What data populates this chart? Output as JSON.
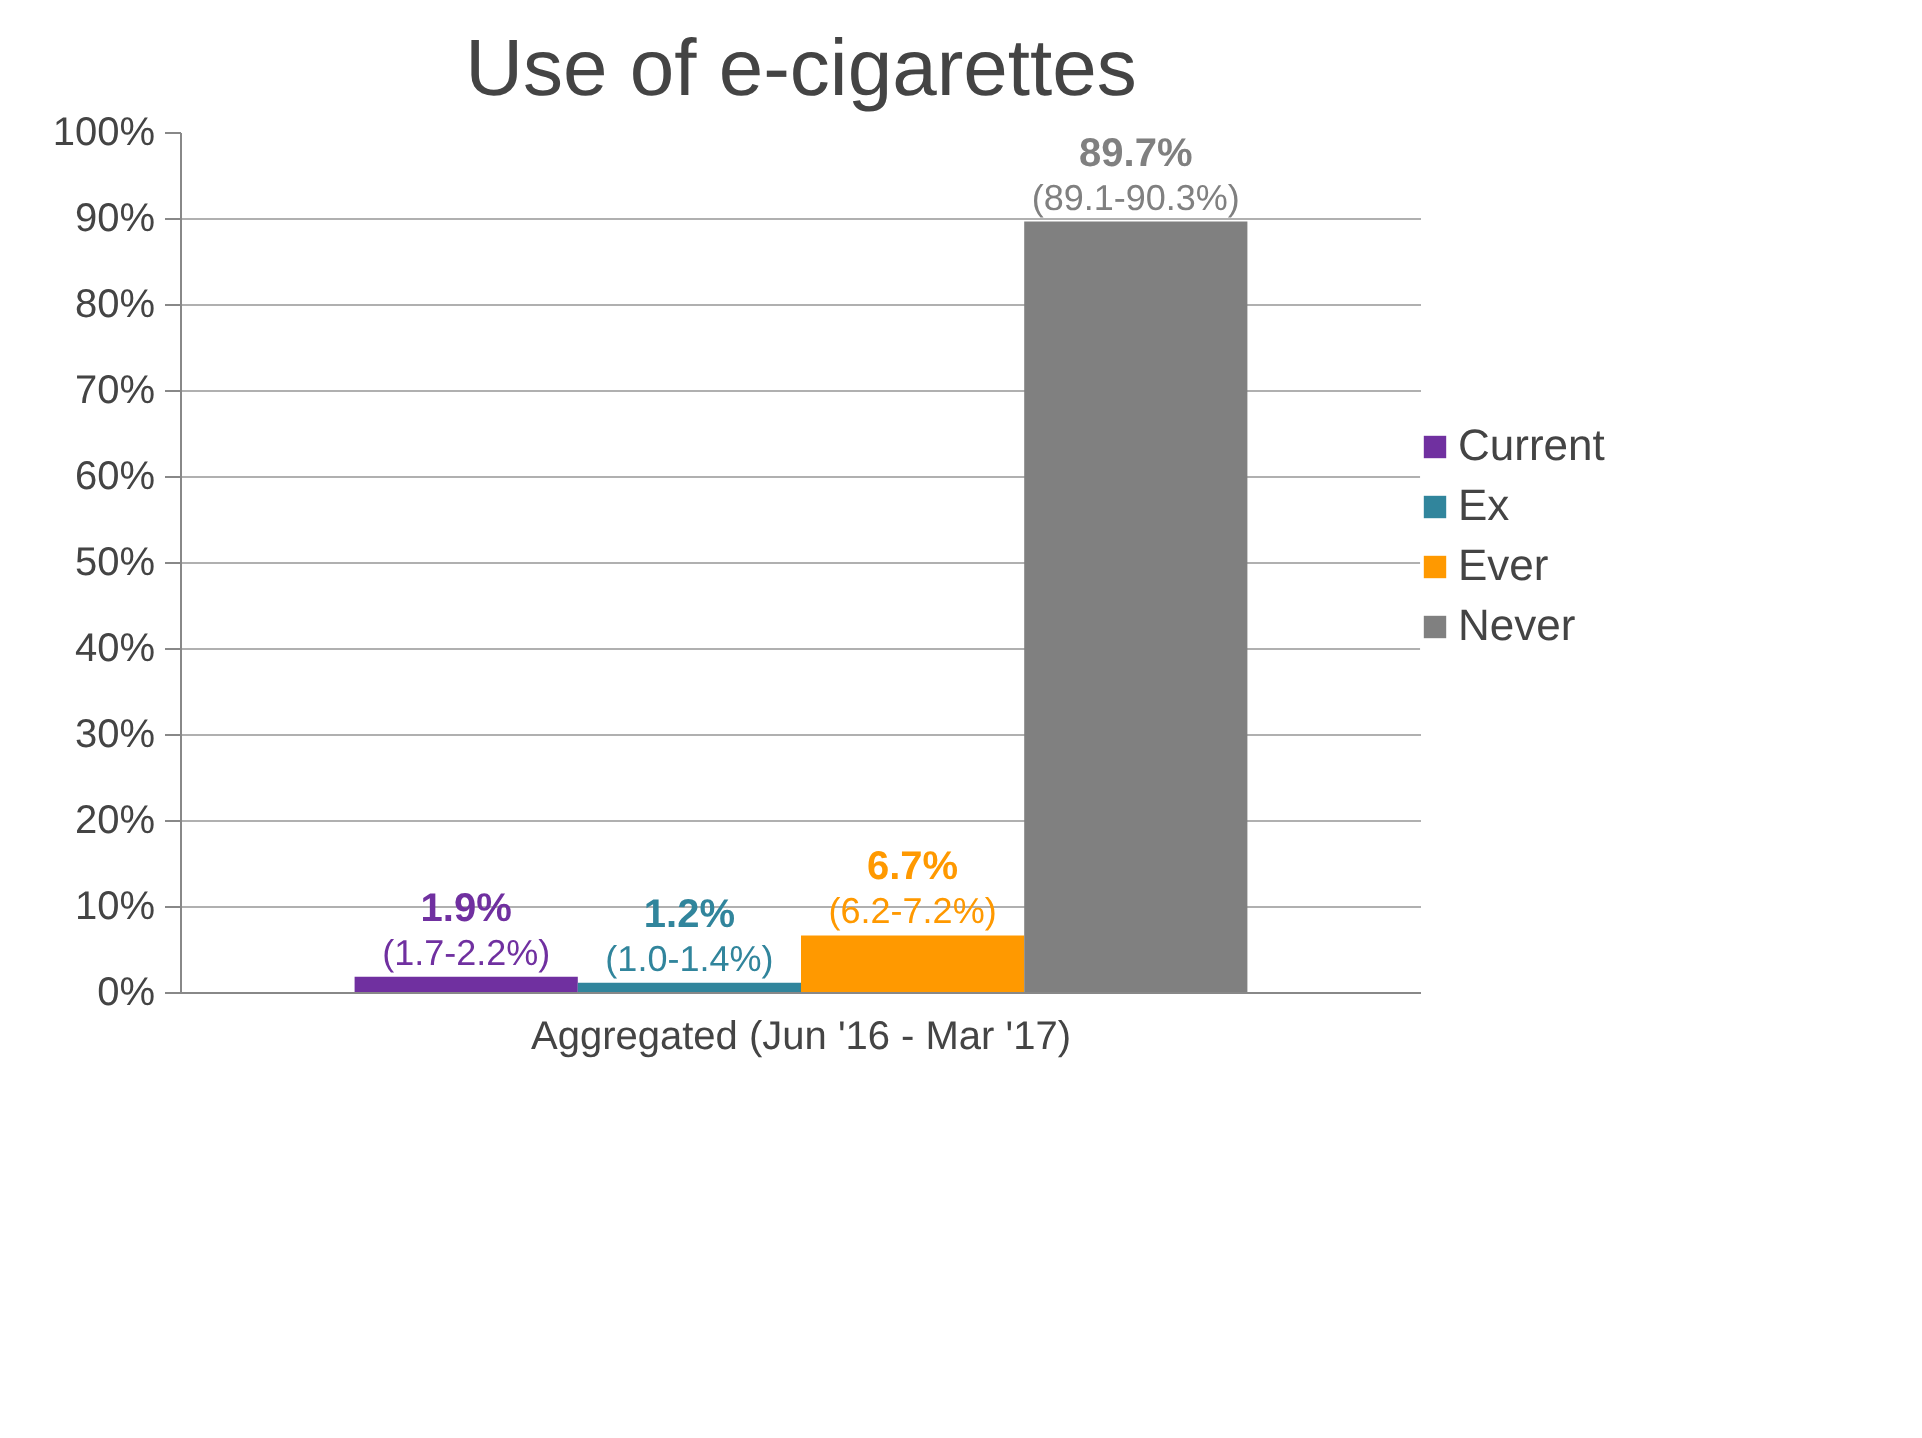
{
  "chart_data": {
    "type": "bar",
    "title": "Use of e-cigarettes",
    "categories": [
      "Aggregated (Jun '16 - Mar '17)"
    ],
    "series": [
      {
        "name": "Current",
        "color": "#7030a0",
        "values": [
          1.9
        ],
        "value_labels": [
          "1.9%\n(1.7-2.2%)"
        ]
      },
      {
        "name": "Ex",
        "color": "#31859c",
        "values": [
          1.2
        ],
        "value_labels": [
          "1.2%\n(1.0-1.4%)"
        ]
      },
      {
        "name": "Ever",
        "color": "#ff9900",
        "values": [
          6.7
        ],
        "value_labels": [
          "6.7%\n(6.2-7.2%)"
        ]
      },
      {
        "name": "Never",
        "color": "#808080",
        "values": [
          89.7
        ],
        "value_labels": [
          "89.7%\n(89.1-90.3%)"
        ]
      }
    ],
    "ylim": [
      0,
      100
    ],
    "yticks": [
      {
        "value": 0,
        "label": "0%"
      },
      {
        "value": 10,
        "label": "10%"
      },
      {
        "value": 20,
        "label": "20%"
      },
      {
        "value": 30,
        "label": "30%"
      },
      {
        "value": 40,
        "label": "40%"
      },
      {
        "value": 50,
        "label": "50%"
      },
      {
        "value": 60,
        "label": "60%"
      },
      {
        "value": 70,
        "label": "70%"
      },
      {
        "value": 80,
        "label": "80%"
      },
      {
        "value": 90,
        "label": "90%"
      },
      {
        "value": 100,
        "label": "100%"
      }
    ],
    "grid": "y",
    "legend": "right"
  }
}
